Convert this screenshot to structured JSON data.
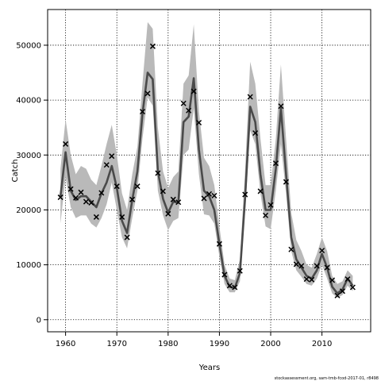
{
  "chart_data": {
    "type": "line",
    "title": "",
    "xlabel": "Years",
    "ylabel": "Catch",
    "xlim": [
      1956.5,
      2019.5
    ],
    "ylim": [
      -2200,
      56500
    ],
    "xticks": [
      1960,
      1970,
      1980,
      1990,
      2000,
      2010
    ],
    "yticks": [
      0,
      10000,
      20000,
      30000,
      40000,
      50000
    ],
    "grid": true,
    "grid_style": "dotted",
    "footnote": "stockassessment.org, sam-tmb-fcod-2017-01, r8498",
    "colors": {
      "line": "#4a4a4a",
      "band": "#b9b9b9",
      "points": "#000000"
    },
    "series": [
      {
        "role": "estimate",
        "x": [
          1959,
          1960,
          1961,
          1962,
          1963,
          1964,
          1965,
          1966,
          1967,
          1968,
          1969,
          1970,
          1971,
          1972,
          1973,
          1974,
          1975,
          1976,
          1977,
          1978,
          1979,
          1980,
          1981,
          1982,
          1983,
          1984,
          1985,
          1986,
          1987,
          1988,
          1989,
          1990,
          1991,
          1992,
          1993,
          1994,
          1995,
          1996,
          1997,
          1998,
          1999,
          2000,
          2001,
          2002,
          2003,
          2004,
          2005,
          2006,
          2007,
          2008,
          2009,
          2010,
          2011,
          2012,
          2013,
          2014,
          2015,
          2016
        ],
        "y": [
          22500,
          30500,
          23500,
          21800,
          22500,
          22500,
          21500,
          20500,
          23000,
          25000,
          28000,
          24000,
          18000,
          15800,
          21800,
          27000,
          37500,
          45000,
          43800,
          27000,
          22000,
          19500,
          21500,
          21300,
          36000,
          37000,
          44000,
          31000,
          23500,
          22500,
          20000,
          13800,
          8000,
          6000,
          5800,
          8500,
          22000,
          38800,
          36000,
          26500,
          20000,
          20000,
          27500,
          38500,
          26500,
          15000,
          11000,
          9500,
          8000,
          7500,
          9000,
          12000,
          9500,
          6000,
          4800,
          5500,
          7500,
          6200
        ],
        "lower": [
          17500,
          26000,
          20500,
          18500,
          19000,
          19000,
          17500,
          16800,
          18500,
          21000,
          25000,
          20000,
          15000,
          13000,
          18500,
          23500,
          33000,
          40500,
          39000,
          23500,
          19000,
          16300,
          18000,
          18500,
          30000,
          31000,
          38500,
          26500,
          19200,
          19000,
          17500,
          11500,
          6500,
          5000,
          5000,
          7000,
          19500,
          34500,
          32000,
          23000,
          17000,
          16500,
          23500,
          32000,
          23000,
          12500,
          9000,
          7800,
          6500,
          6200,
          7500,
          10000,
          7500,
          4800,
          4000,
          4500,
          6200,
          5200
        ],
        "upper": [
          27500,
          36500,
          30000,
          26500,
          28000,
          27500,
          25500,
          24500,
          28000,
          32000,
          35500,
          30000,
          23000,
          20000,
          26500,
          31500,
          43000,
          54200,
          53000,
          35000,
          27000,
          24000,
          26000,
          27000,
          43000,
          44500,
          53800,
          38000,
          29500,
          28000,
          24500,
          17000,
          10000,
          7500,
          7200,
          11000,
          27000,
          47000,
          43000,
          33000,
          24500,
          24500,
          33000,
          46500,
          33000,
          19500,
          14500,
          12500,
          10000,
          9500,
          12000,
          15000,
          12500,
          8000,
          6500,
          7000,
          9000,
          8000
        ]
      },
      {
        "role": "observed",
        "marker": "x",
        "x": [
          1959,
          1960,
          1961,
          1962,
          1963,
          1964,
          1965,
          1966,
          1967,
          1968,
          1969,
          1970,
          1971,
          1972,
          1973,
          1974,
          1975,
          1976,
          1977,
          1978,
          1979,
          1980,
          1981,
          1982,
          1983,
          1984,
          1985,
          1986,
          1987,
          1988,
          1989,
          1990,
          1991,
          1992,
          1993,
          1994,
          1995,
          1996,
          1997,
          1998,
          1999,
          2000,
          2001,
          2002,
          2003,
          2004,
          2005,
          2006,
          2007,
          2008,
          2009,
          2010,
          2011,
          2012,
          2013,
          2014,
          2015,
          2016
        ],
        "y": [
          22300,
          32000,
          23800,
          22200,
          23200,
          21500,
          21300,
          18700,
          23100,
          28200,
          29800,
          24300,
          18700,
          15000,
          21900,
          24300,
          37900,
          41200,
          49800,
          26700,
          23400,
          19300,
          21900,
          21400,
          39400,
          38100,
          41600,
          35900,
          22100,
          22900,
          22600,
          13800,
          8200,
          6200,
          5900,
          8900,
          22800,
          40600,
          34000,
          23400,
          19000,
          20900,
          28500,
          38900,
          25100,
          12800,
          10100,
          9800,
          7400,
          7300,
          9800,
          12600,
          9500,
          7200,
          4400,
          5200,
          7400,
          5900
        ]
      }
    ]
  }
}
